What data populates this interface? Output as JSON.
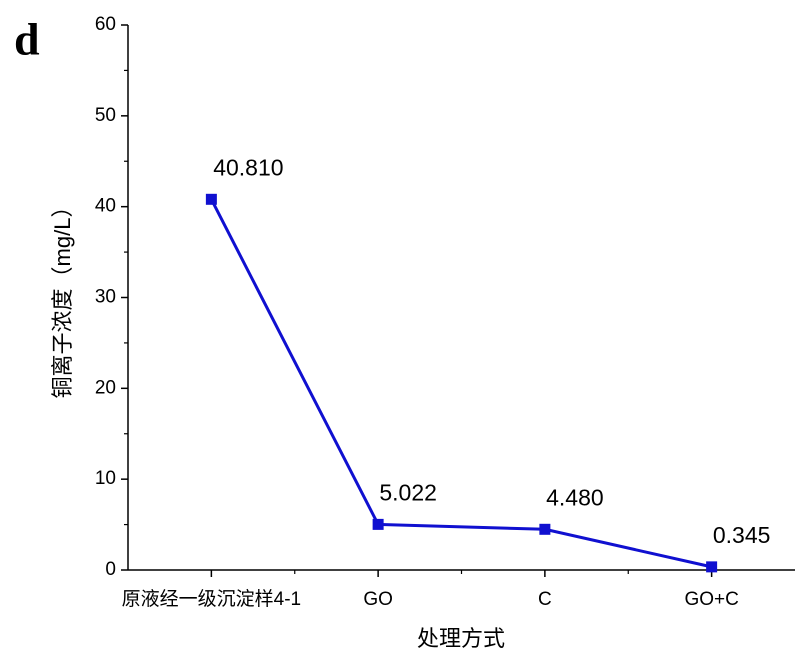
{
  "chart_data": {
    "type": "line",
    "panel_label": "d",
    "y_label": "铜离子浓度（mg/L）",
    "x_label": "处理方式",
    "categories": [
      "原液经一级沉淀样4-1",
      "GO",
      "C",
      "GO+C"
    ],
    "series": [
      {
        "name": "铜离子浓度",
        "color": "#1010d0",
        "values": [
          40.81,
          5.022,
          4.48,
          0.345
        ],
        "value_labels": [
          "40.810",
          "5.022",
          "4.480",
          "0.345"
        ]
      }
    ],
    "ylim": [
      0,
      60
    ],
    "yticks": [
      0,
      10,
      20,
      30,
      40,
      50,
      60
    ]
  }
}
